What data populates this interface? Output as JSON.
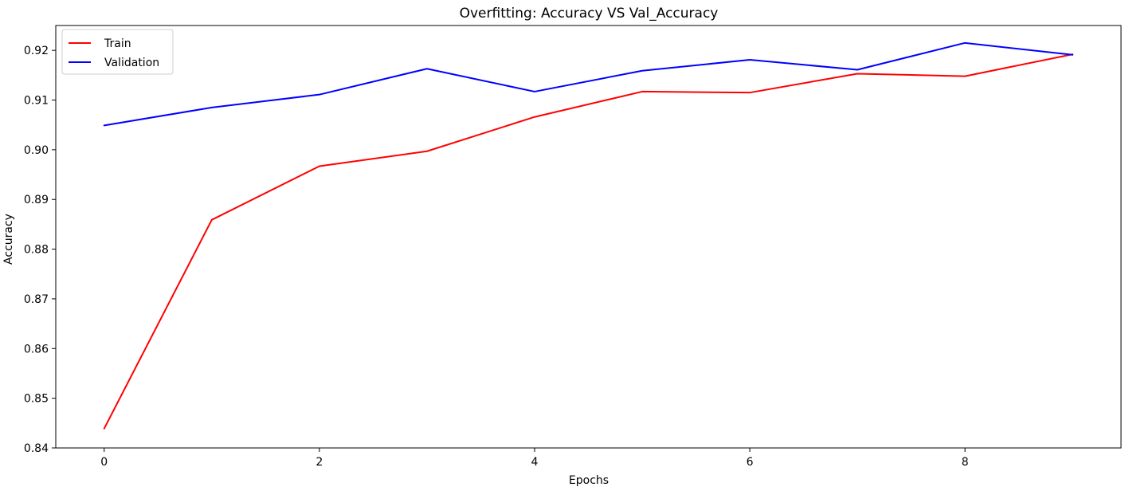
{
  "chart_data": {
    "type": "line",
    "title": "Overfitting: Accuracy VS Val_Accuracy",
    "xlabel": "Epochs",
    "ylabel": "Accuracy",
    "x": [
      0,
      1,
      2,
      3,
      4,
      5,
      6,
      7,
      8,
      9
    ],
    "xlim": [
      -0.45,
      9.45
    ],
    "ylim": [
      0.84,
      0.925
    ],
    "xticks": [
      0,
      2,
      4,
      6,
      8
    ],
    "xtick_labels": [
      "0",
      "2",
      "4",
      "6",
      "8"
    ],
    "yticks": [
      0.84,
      0.85,
      0.86,
      0.87,
      0.88,
      0.89,
      0.9,
      0.91,
      0.92
    ],
    "ytick_labels": [
      "0.84",
      "0.85",
      "0.86",
      "0.87",
      "0.88",
      "0.89",
      "0.90",
      "0.91",
      "0.92"
    ],
    "grid": false,
    "legend_position": "top-left",
    "series": [
      {
        "name": "Train",
        "color": "#ff0000",
        "values": [
          0.8439,
          0.8859,
          0.8967,
          0.8997,
          0.9066,
          0.9117,
          0.9115,
          0.9153,
          0.9148,
          0.9192
        ]
      },
      {
        "name": "Validation",
        "color": "#0000ff",
        "values": [
          0.9049,
          0.9085,
          0.9111,
          0.9163,
          0.9117,
          0.9159,
          0.9181,
          0.9161,
          0.9215,
          0.9191
        ]
      }
    ]
  }
}
